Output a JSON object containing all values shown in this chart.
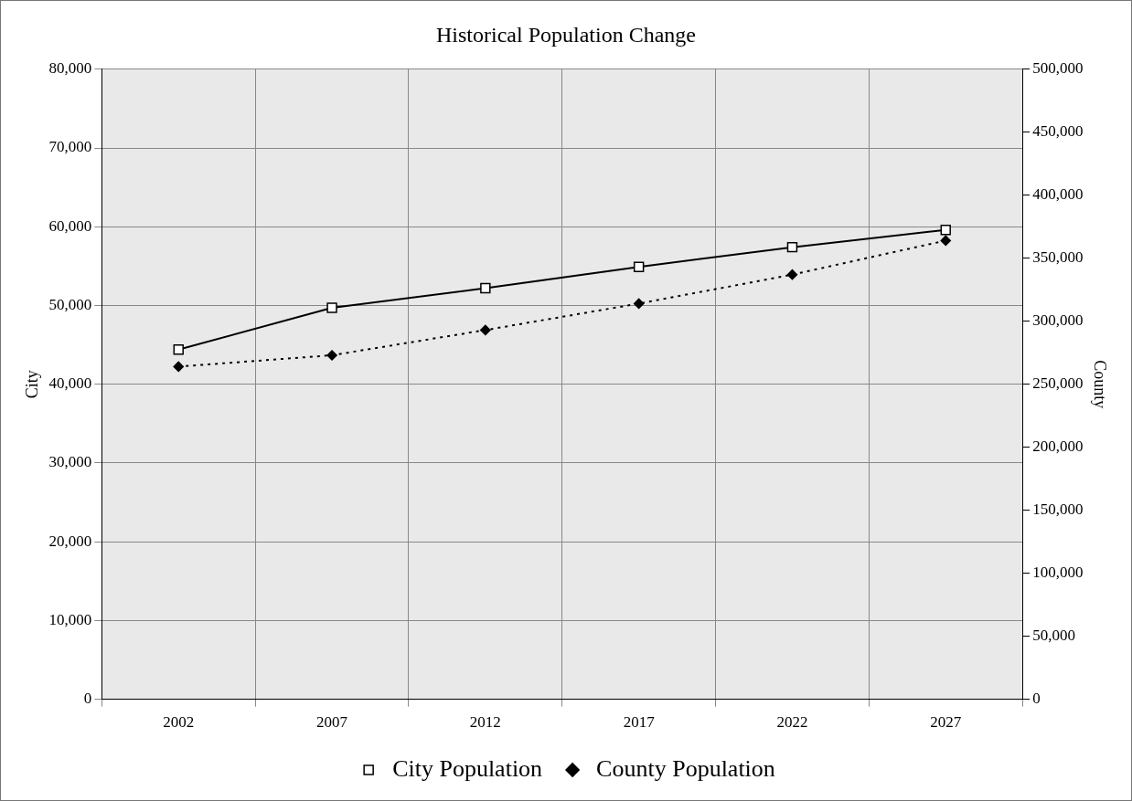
{
  "chart_data": {
    "type": "line",
    "title": "Historical Population Change",
    "ylabel": "City",
    "y2label": "County",
    "categories": [
      "2002",
      "2007",
      "2012",
      "2017",
      "2022",
      "2027"
    ],
    "series": [
      {
        "name": "City Population",
        "color": "#000000",
        "values": [
          44400,
          49700,
          52200,
          54900,
          57400,
          59600
        ],
        "marker": "square",
        "line_style": "solid"
      },
      {
        "name": "County Population",
        "color": "#000000",
        "values": [
          264000,
          273000,
          293000,
          314000,
          337000,
          364000
        ],
        "axis": "y2",
        "marker": "diamond",
        "line_style": "dotted"
      }
    ],
    "ylim": [
      0,
      80000
    ],
    "yticks": [
      0,
      {
        "value": 10000,
        "label": "10,000"
      },
      {
        "value": 20000,
        "label": "20,000"
      },
      {
        "value": 30000,
        "label": "30,000"
      },
      {
        "value": 40000,
        "label": "40,000"
      },
      {
        "value": 50000,
        "label": "50,000"
      },
      {
        "value": 60000,
        "label": "60,000"
      },
      {
        "value": 70000,
        "label": "70,000"
      },
      {
        "value": 80000,
        "label": "80,000"
      }
    ],
    "y2lim": [
      0,
      500000
    ],
    "y2ticks": [
      0,
      {
        "value": 50000,
        "label": "50,000"
      },
      {
        "value": 100000,
        "label": "100,000"
      },
      {
        "value": 150000,
        "label": "150,000"
      },
      {
        "value": 200000,
        "label": "200,000"
      },
      {
        "value": 250000,
        "label": "250,000"
      },
      {
        "value": 300000,
        "label": "300,000"
      },
      {
        "value": 350000,
        "label": "350,000"
      },
      {
        "value": 400000,
        "label": "400,000"
      },
      {
        "value": 450000,
        "label": "450,000"
      },
      {
        "value": 500000,
        "label": "500,000"
      }
    ],
    "grid": true,
    "legend": "bottom"
  }
}
